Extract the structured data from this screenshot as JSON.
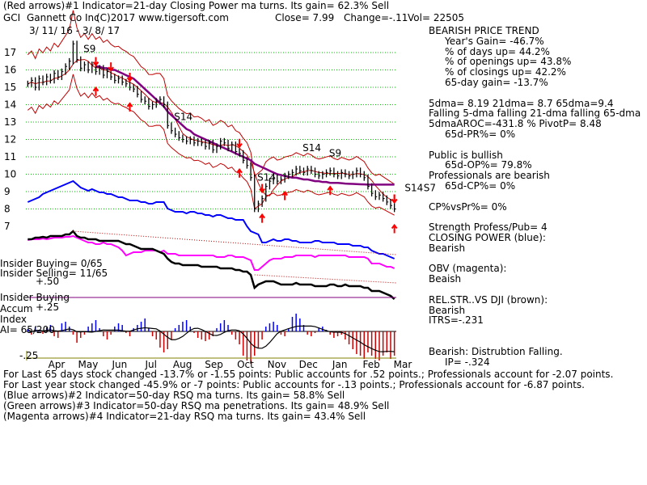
{
  "header": {
    "line1": "(Red arrows)#1 Indicator=21-day Closing Power ma turns. Its gain= 62.3% Sell",
    "ticker": "GCI",
    "company": "Gannett Co Inc",
    "copyright": "(C)2017 www.tigersoft.com",
    "close": "Close=  7.99",
    "change": "Change=-.11",
    "vol": "Vol= 22505",
    "date_range": "3/ 11/ 16 - 3/ 8/ 17"
  },
  "right_panel": [
    {
      "text": "BEARISH PRICE TREND",
      "indent": 0
    },
    {
      "text": "Year's Gain= -46.7%",
      "indent": 20
    },
    {
      "text": "% of days up= 44.2%",
      "indent": 20
    },
    {
      "text": "% of openings up= 43.8%",
      "indent": 20
    },
    {
      "text": "% of closings up= 42.2%",
      "indent": 20
    },
    {
      "text": "65-day gain= -13.7%",
      "indent": 20
    },
    {
      "text": "",
      "indent": 0
    },
    {
      "text": "5dma= 8.19 21dma= 8.7 65dma=9.4",
      "indent": 0
    },
    {
      "text": "Falling 5-dma falling 21-dma falling 65-dma",
      "indent": 0
    },
    {
      "text": "5dmaAROC=-431.8 %  PivotP= 8.48",
      "indent": 0
    },
    {
      "text": "65d-PR%= 0%",
      "indent": 20
    },
    {
      "text": "",
      "indent": 0
    },
    {
      "text": "Public is bullish",
      "indent": 0
    },
    {
      "text": "65d-OP%= 79.8%",
      "indent": 20
    },
    {
      "text": "Professionals are bearish",
      "indent": 0
    },
    {
      "text": "65d-CP%= 0%",
      "indent": 20
    },
    {
      "text": "",
      "indent": 0
    },
    {
      "text": "CP%vsPr%=  0%",
      "indent": 0
    },
    {
      "text": "",
      "indent": 0
    },
    {
      "text": "Strength Profess/Pub= 4",
      "indent": 0
    },
    {
      "text": "CLOSING POWER (blue):",
      "indent": 0
    },
    {
      "text": "Bearish",
      "indent": 0
    },
    {
      "text": "",
      "indent": 0
    },
    {
      "text": "OBV (magenta):",
      "indent": 0
    },
    {
      "text": "Beaish",
      "indent": 0
    },
    {
      "text": "",
      "indent": 0
    },
    {
      "text": "REL.STR..VS DJI (brown):",
      "indent": 0
    },
    {
      "text": "Bearish",
      "indent": 0
    },
    {
      "text": "ITRS=-.231",
      "indent": 0
    },
    {
      "text": "",
      "indent": 0
    },
    {
      "text": "",
      "indent": 0
    },
    {
      "text": "Bearish: Distrubtion Falling.",
      "indent": 0
    },
    {
      "text": "IP= -.324",
      "indent": 20
    }
  ],
  "left_labels": {
    "insider_buying_count": "Insider Buying= 0/65",
    "insider_selling_count": "Insider Selling= 11/65",
    "plus50": "+.50",
    "insider_buying": "Insider Buying",
    "accum": "Accum",
    "plus25": "+.25",
    "index": "Index",
    "ai": "AI= 65/200",
    "minus25": "-.25"
  },
  "footer": [
    "For Last 65 days stock changed -13.7% or -1.55 points:  Public accounts for  .52 points.;  Professionals account for -2.07 points.",
    "For Last year stock changed -45.9% or -7 points:  Public accounts for -.13 points.;  Professionals account for -6.87 points.",
    "(Blue arrows)#2 Indicator=50-day RSQ ma turns. Its gain= 58.8% Sell",
    "(Green arrows)#3 Indicator=50-day RSQ ma penetrations. Its gain= 48.9% Sell",
    "(Magenta arrows)#4 Indicator=21-day RSQ ma turns. Its gain= 43.4% Sell"
  ],
  "signals": [
    {
      "label": "S9",
      "t": 16
    },
    {
      "label": "S14",
      "t": 40
    },
    {
      "label": "S14",
      "t": 62
    },
    {
      "label": "S14",
      "t": 74
    },
    {
      "label": "S9",
      "t": 81
    },
    {
      "label": "S14",
      "t": 101
    },
    {
      "label": "S7",
      "t": 106
    }
  ],
  "colors": {
    "price_bars": "#000000",
    "grid": "#00c000",
    "bands": "#c00000",
    "ma65": "#800080",
    "closing_power": "#0000ff",
    "obv": "#ff00ff",
    "rel_str": "#000000",
    "accum_pos": "#0000ff",
    "accum_neg": "#cc0000",
    "accum_line": "#000000",
    "red_arrow": "#ff0000",
    "axis": "#808000"
  },
  "chart_data": {
    "type": "line",
    "ylim": [
      7,
      17
    ],
    "y_ticks": [
      7,
      8,
      9,
      10,
      11,
      12,
      13,
      14,
      15,
      16,
      17
    ],
    "x_categories": [
      "Apr",
      "May",
      "Jun",
      "Jul",
      "Aug",
      "Sep",
      "Oct",
      "Nov",
      "Dec",
      "Jan",
      "Feb",
      "Mar"
    ],
    "price": [
      15.2,
      15.4,
      15.0,
      15.5,
      15.3,
      15.6,
      15.4,
      15.8,
      15.6,
      15.9,
      16.2,
      16.5,
      17.5,
      16.6,
      16.1,
      16.3,
      16.0,
      16.3,
      15.9,
      16.1,
      15.7,
      15.9,
      15.6,
      15.4,
      15.5,
      15.3,
      15.2,
      15.0,
      14.9,
      14.6,
      14.3,
      14.2,
      13.9,
      14.0,
      14.2,
      14.3,
      14.0,
      12.8,
      12.5,
      12.3,
      12.1,
      12.0,
      11.9,
      12.0,
      11.8,
      11.9,
      11.8,
      11.6,
      11.8,
      11.4,
      11.6,
      11.9,
      11.8,
      11.5,
      11.7,
      11.3,
      11.2,
      10.8,
      10.5,
      9.8,
      8.0,
      8.3,
      8.6,
      9.3,
      9.6,
      9.8,
      9.6,
      9.7,
      9.9,
      10.0,
      10.1,
      10.3,
      10.2,
      10.1,
      10.3,
      10.2,
      10.0,
      9.9,
      10.0,
      10.1,
      10.2,
      10.0,
      9.9,
      10.1,
      10.0,
      9.9,
      10.0,
      10.2,
      10.0,
      9.8,
      9.3,
      8.9,
      8.7,
      8.8,
      8.6,
      8.4,
      8.2,
      8.0
    ],
    "ma65": [
      null,
      null,
      null,
      null,
      null,
      null,
      null,
      null,
      null,
      null,
      null,
      null,
      null,
      null,
      null,
      null,
      null,
      null,
      16.2,
      16.2,
      16.1,
      16.1,
      16.0,
      16.0,
      15.9,
      15.8,
      15.7,
      15.6,
      15.5,
      15.3,
      15.1,
      14.9,
      14.7,
      14.5,
      14.3,
      14.1,
      13.9,
      13.6,
      13.4,
      13.2,
      13.0,
      12.8,
      12.6,
      12.5,
      12.3,
      12.2,
      12.1,
      12.0,
      11.9,
      11.8,
      11.7,
      11.6,
      11.5,
      11.4,
      11.3,
      11.2,
      11.1,
      11.0,
      10.9,
      10.8,
      10.6,
      10.5,
      10.4,
      10.3,
      10.2,
      10.1,
      10.0,
      9.95,
      9.9,
      9.85,
      9.8,
      9.8,
      9.75,
      9.7,
      9.7,
      9.65,
      9.6,
      9.6,
      9.55,
      9.55,
      9.5,
      9.5,
      9.5,
      9.48,
      9.46,
      9.45,
      9.44,
      9.43,
      9.42,
      9.41,
      9.4,
      9.4,
      9.4,
      9.4,
      9.4,
      9.4,
      9.4,
      9.4
    ],
    "closing_power_note": "blue line",
    "obv_note": "magenta line",
    "rel_str_note": "black line"
  }
}
